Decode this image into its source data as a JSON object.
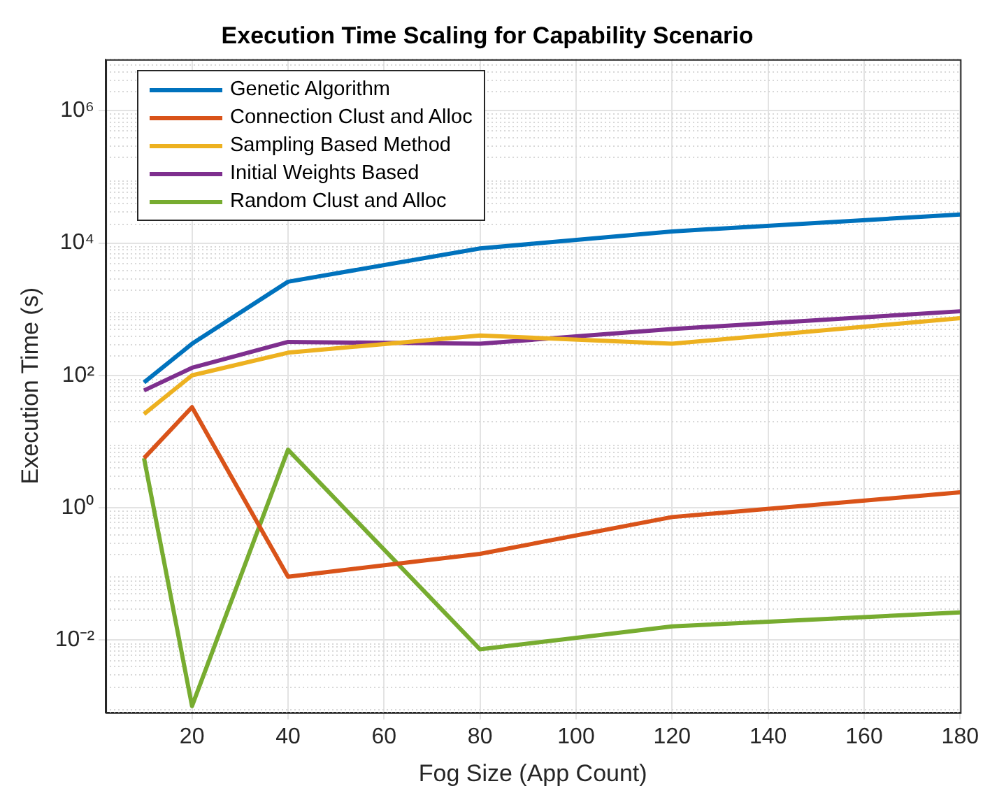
{
  "chart_data": {
    "type": "line",
    "title": "Execution Time Scaling for Capability Scenario",
    "xlabel": "Fog Size (App Count)",
    "ylabel": "Execution Time (s)",
    "x": [
      10,
      20,
      40,
      80,
      120,
      180
    ],
    "series": [
      {
        "name": "Genetic Algorithm",
        "color": "#0072bd",
        "values": [
          78,
          300,
          2600,
          8300,
          15000,
          27000
        ]
      },
      {
        "name": "Connection Clust and Alloc",
        "color": "#d95319",
        "values": [
          5.6,
          33,
          0.09,
          0.2,
          0.72,
          1.7
        ]
      },
      {
        "name": "Sampling Based Method",
        "color": "#edb120",
        "values": [
          26,
          100,
          220,
          400,
          300,
          730
        ]
      },
      {
        "name": "Initial Weights Based",
        "color": "#7e2f8e",
        "values": [
          59,
          130,
          320,
          300,
          500,
          930
        ]
      },
      {
        "name": "Random Clust and Alloc",
        "color": "#77ac30",
        "values": [
          5.6,
          0.001,
          7.5,
          0.0072,
          0.016,
          0.026
        ]
      }
    ],
    "log": "y",
    "xlim": [
      2,
      180
    ],
    "ylim": [
      0.0008,
      6000000
    ],
    "xticks": [
      20,
      40,
      60,
      80,
      100,
      120,
      140,
      160,
      180
    ],
    "yticks": [
      {
        "value": 0.01,
        "label": "10⁻²"
      },
      {
        "value": 1,
        "label": "10⁰"
      },
      {
        "value": 100,
        "label": "10²"
      },
      {
        "value": 10000,
        "label": "10⁴"
      },
      {
        "value": 1000000,
        "label": "10⁶"
      }
    ],
    "grid": true,
    "legend": "top left",
    "marker": "none",
    "line_style": "solid"
  }
}
